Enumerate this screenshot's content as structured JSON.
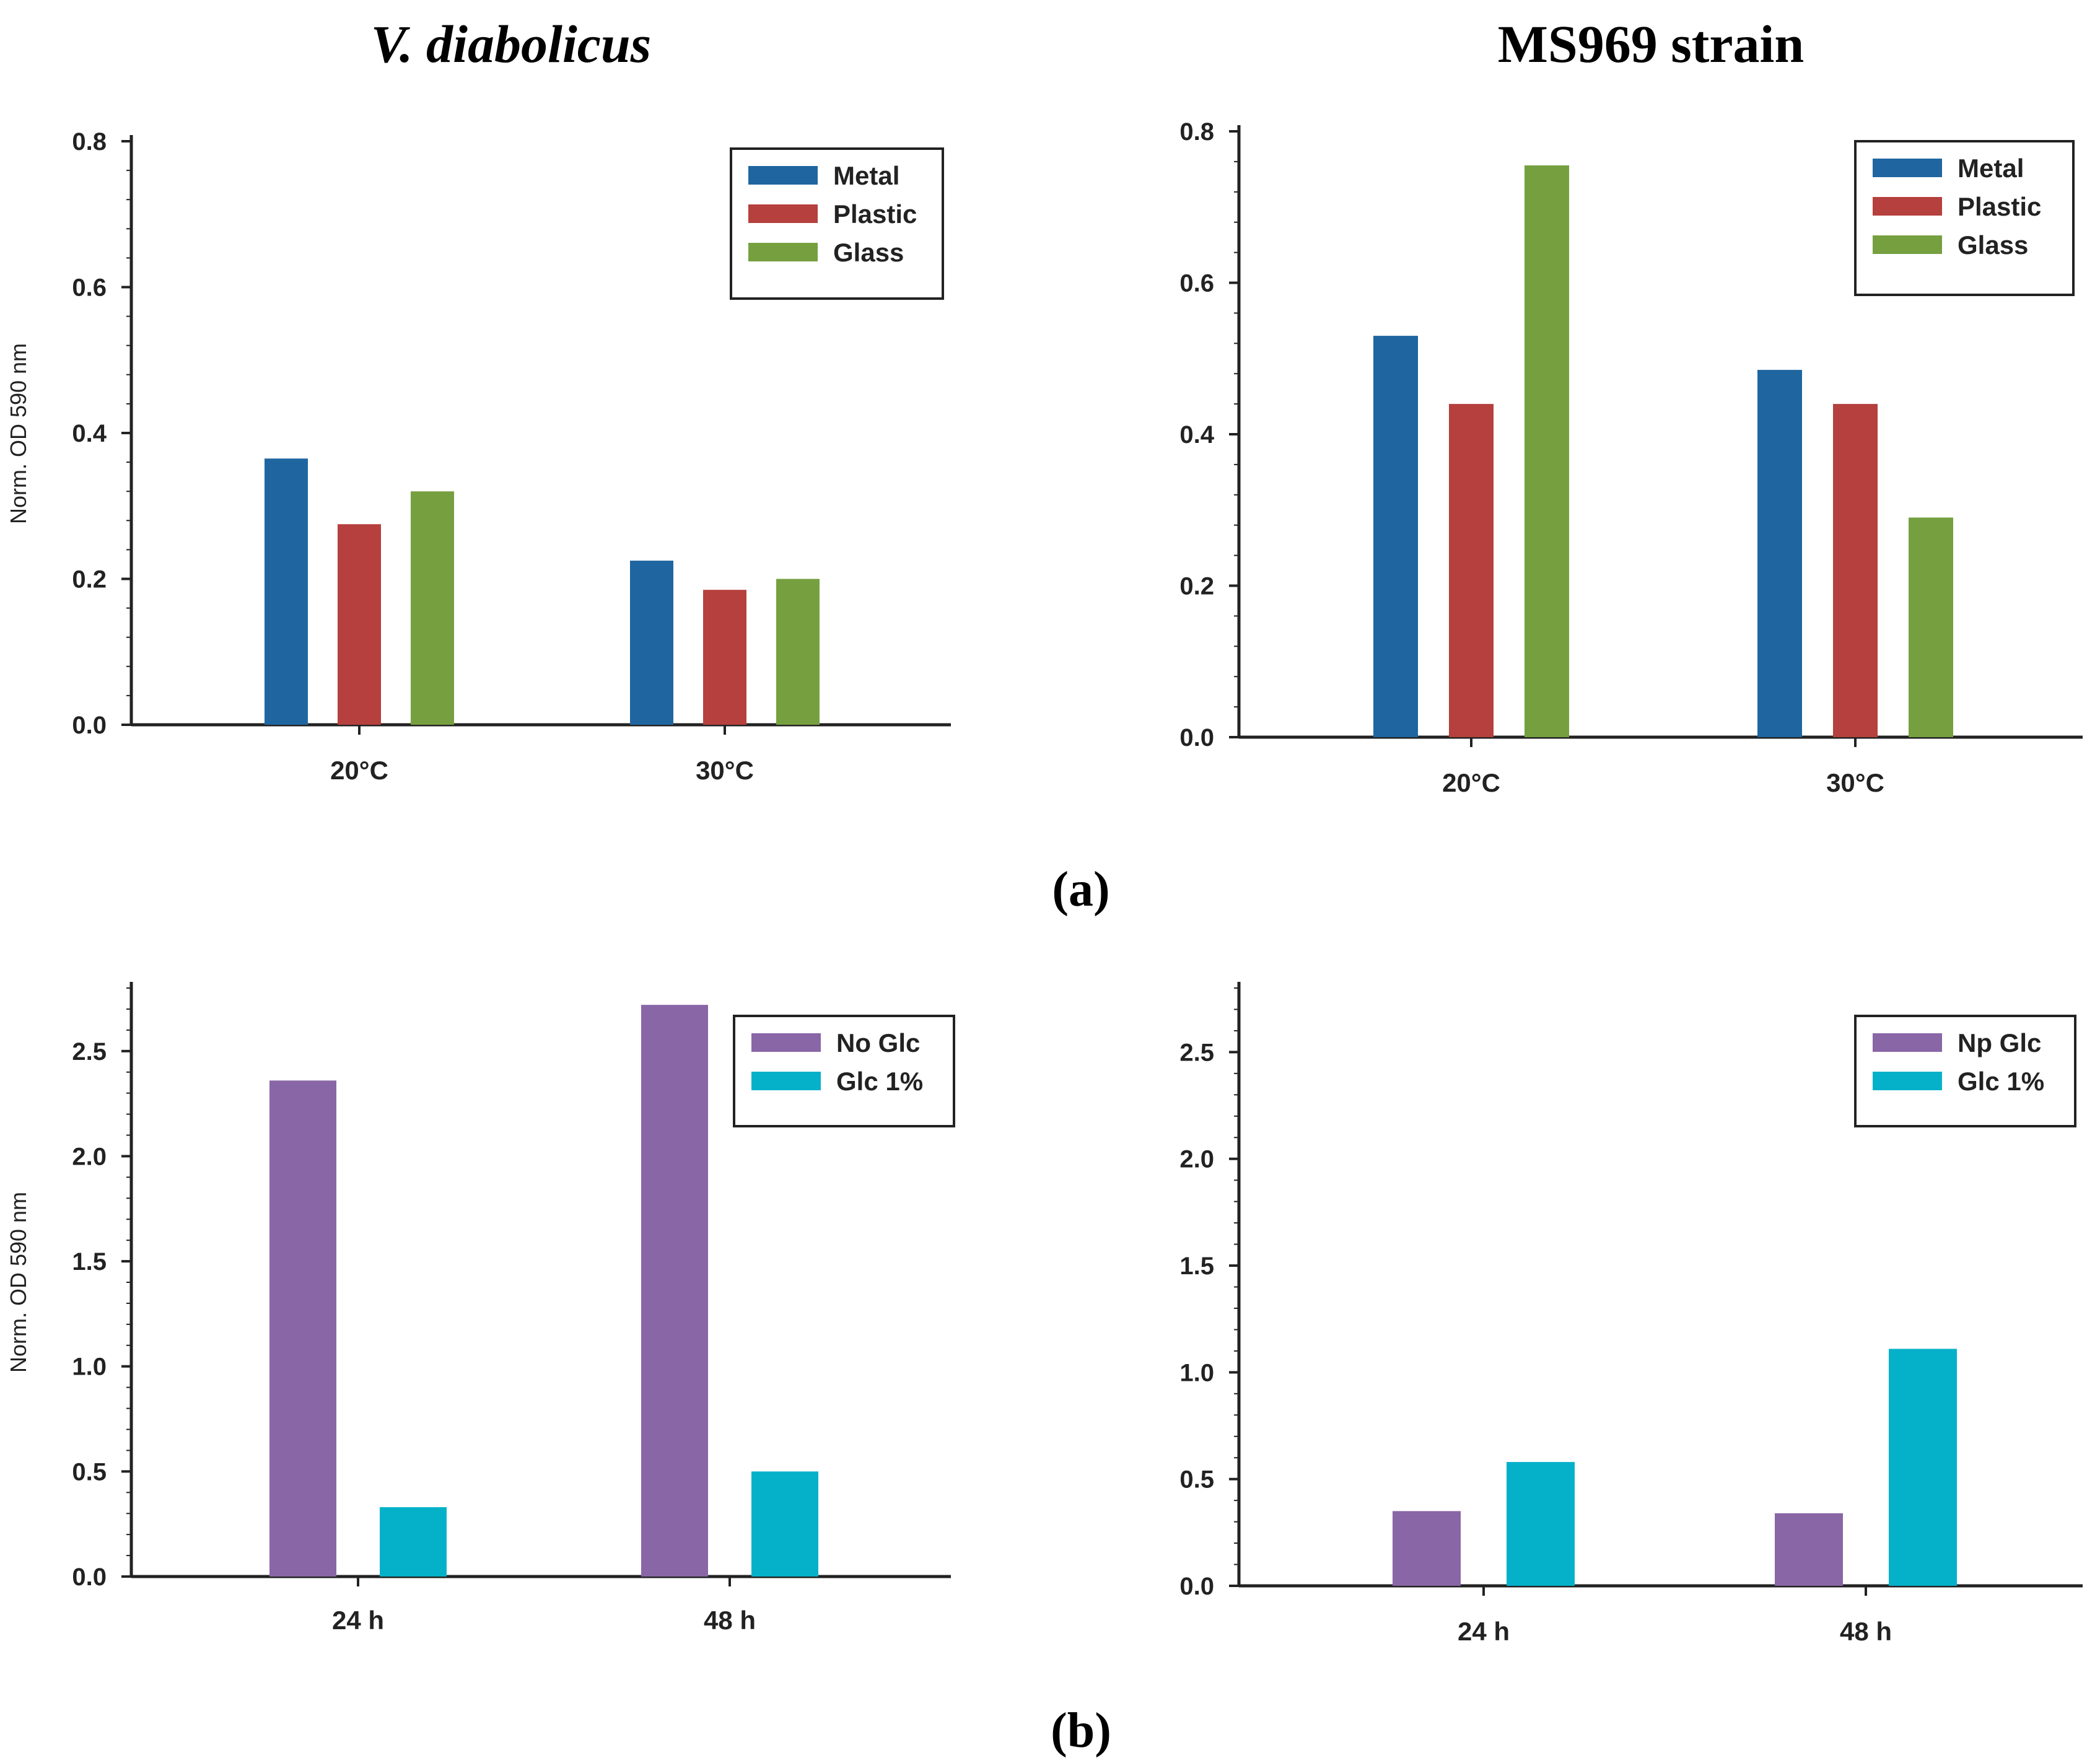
{
  "titles": {
    "left": "V. diabolicus",
    "right": "MS969 strain",
    "panel_a": "(a)",
    "panel_b": "(b)"
  },
  "colors": {
    "Metal": "#1f66a0",
    "Plastic": "#b5403d",
    "Glass": "#76a040",
    "purple": "#8966a6",
    "cyan": "#05b1c9"
  },
  "chart_data": [
    {
      "type": "bar",
      "panel": "a",
      "title": "V. diabolicus",
      "categories": [
        "20°C",
        "30°C"
      ],
      "series": [
        {
          "name": "Metal",
          "values": [
            0.365,
            0.225
          ]
        },
        {
          "name": "Plastic",
          "values": [
            0.275,
            0.185
          ]
        },
        {
          "name": "Glass",
          "values": [
            0.32,
            0.2
          ]
        }
      ],
      "ylabel": "Norm. OD 590 nm",
      "ylim": [
        0,
        0.8
      ],
      "yticks": [
        "0.0",
        "0.2",
        "0.4",
        "0.6",
        "0.8"
      ],
      "legend": "top-right",
      "grid": false
    },
    {
      "type": "bar",
      "panel": "a",
      "title": "MS969 strain",
      "categories": [
        "20°C",
        "30°C"
      ],
      "series": [
        {
          "name": "Metal",
          "values": [
            0.53,
            0.485
          ]
        },
        {
          "name": "Plastic",
          "values": [
            0.44,
            0.44
          ]
        },
        {
          "name": "Glass",
          "values": [
            0.755,
            0.29
          ]
        }
      ],
      "ylabel": "",
      "ylim": [
        0,
        0.8
      ],
      "yticks": [
        "0.0",
        "0.2",
        "0.4",
        "0.6",
        "0.8"
      ],
      "legend": "top-right",
      "grid": false
    },
    {
      "type": "bar",
      "panel": "b",
      "title": "V. diabolicus",
      "categories": [
        "24 h",
        "48 h"
      ],
      "series": [
        {
          "name": "No Glc",
          "values": [
            2.36,
            2.72
          ]
        },
        {
          "name": "Glc 1%",
          "values": [
            0.33,
            0.5
          ]
        }
      ],
      "ylabel": "Norm. OD 590 nm",
      "ylim": [
        0,
        2.8
      ],
      "yticks": [
        "0.0",
        "0.5",
        "1.0",
        "1.5",
        "2.0",
        "2.5"
      ],
      "legend": "top-right",
      "grid": false
    },
    {
      "type": "bar",
      "panel": "b",
      "title": "MS969 strain",
      "categories": [
        "24 h",
        "48 h"
      ],
      "series": [
        {
          "name": "Np Glc",
          "values": [
            0.35,
            0.34
          ]
        },
        {
          "name": "Glc 1%",
          "values": [
            0.58,
            1.11
          ]
        }
      ],
      "ylabel": "",
      "ylim": [
        0,
        2.8
      ],
      "yticks": [
        "0.0",
        "0.5",
        "1.0",
        "1.5",
        "2.0",
        "2.5"
      ],
      "legend": "top-right",
      "grid": false
    }
  ]
}
